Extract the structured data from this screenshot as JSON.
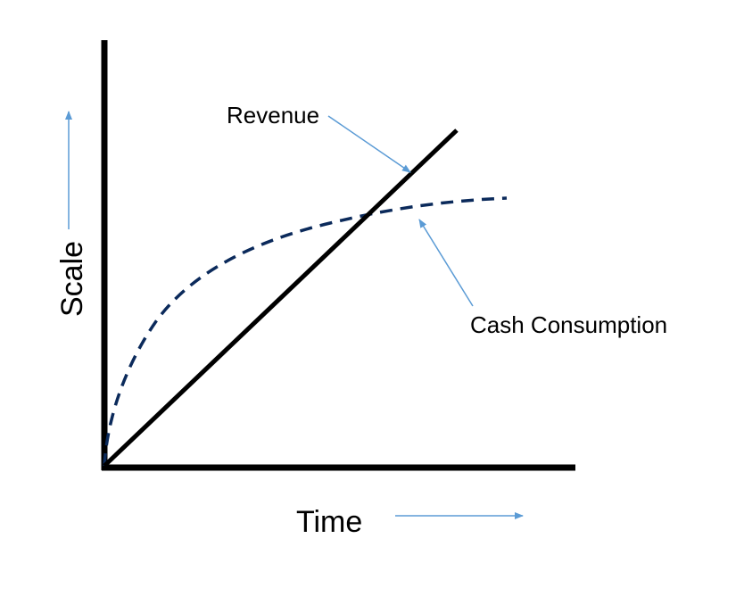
{
  "diagram": {
    "x_axis_label": "Time",
    "y_axis_label": "Scale",
    "lines": [
      {
        "label": "Revenue",
        "style": "solid",
        "color": "#000000"
      },
      {
        "label": "Cash Consumption",
        "style": "dashed",
        "color": "#0b2a5b"
      }
    ],
    "arrow_color": "#5b9bd5"
  }
}
